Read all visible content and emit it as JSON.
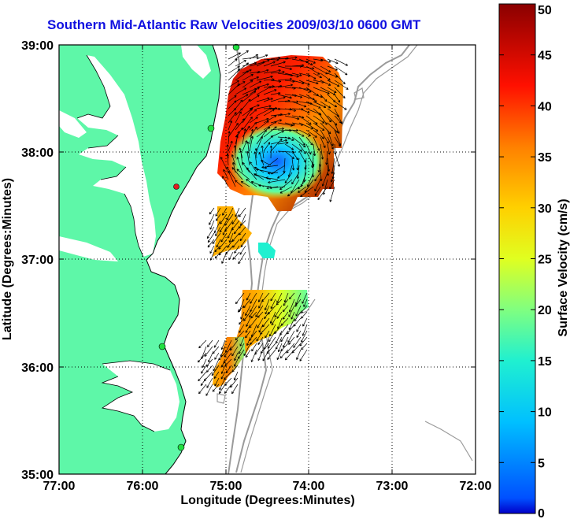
{
  "title": "Southern Mid-Atlantic Raw Velocities 2009/03/10 0600 GMT",
  "axes": {
    "xlabel": "Longitude (Degrees:Minutes)",
    "ylabel": "Latitude (Degrees:Minutes)",
    "xticks": [
      "77:00",
      "76:00",
      "75:00",
      "74:00",
      "73:00",
      "72:00"
    ],
    "yticks": [
      "39:00",
      "38:00",
      "37:00",
      "36:00",
      "35:00"
    ]
  },
  "colorbar": {
    "label": "Surface Velocity (cm/s)",
    "ticks": [
      "50",
      "45",
      "40",
      "35",
      "30",
      "25",
      "20",
      "15",
      "10",
      "5",
      "0"
    ]
  },
  "colors": {
    "land": "#5ef7a8",
    "title": "#1010e0",
    "isobath": "#9a9a9a"
  }
}
